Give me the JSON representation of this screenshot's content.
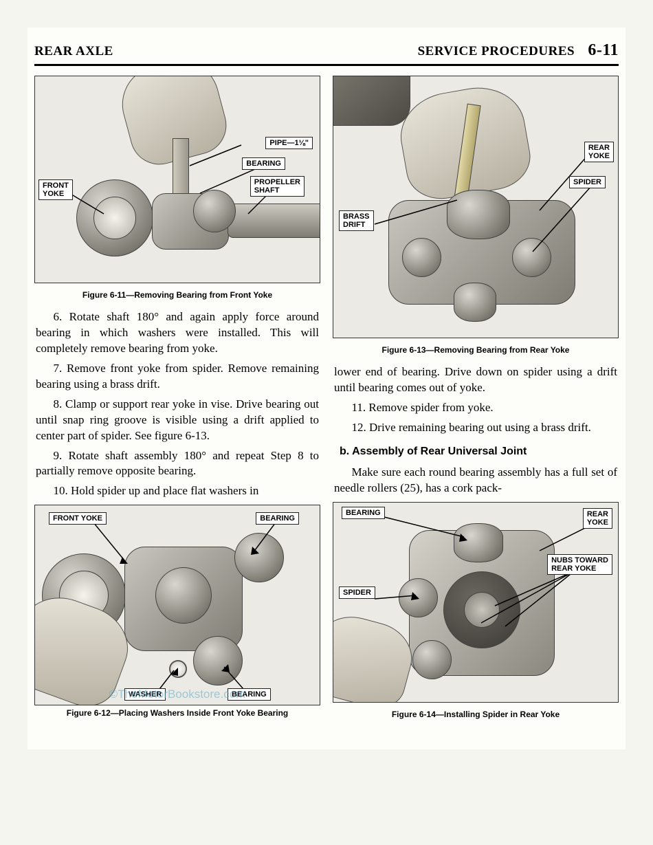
{
  "header": {
    "left": "REAR AXLE",
    "right": "SERVICE PROCEDURES",
    "pageNum": "6-11"
  },
  "figures": {
    "f611": {
      "caption": "Figure 6-11—Removing Bearing from Front Yoke",
      "labels": {
        "frontYoke": "FRONT\nYOKE",
        "pipe": "PIPE—1⅛\"",
        "bearing": "BEARING",
        "propShaft": "PROPELLER\nSHAFT"
      }
    },
    "f612": {
      "caption": "Figure 6-12—Placing Washers Inside Front Yoke Bearing",
      "labels": {
        "frontYoke": "FRONT YOKE",
        "bearing": "BEARING",
        "washer": "WASHER",
        "bearing2": "BEARING"
      }
    },
    "f613": {
      "caption": "Figure 6-13—Removing Bearing from Rear Yoke",
      "labels": {
        "brassDrift": "BRASS\nDRIFT",
        "rearYoke": "REAR\nYOKE",
        "spider": "SPIDER"
      }
    },
    "f614": {
      "caption": "Figure 6-14—Installing Spider in Rear Yoke",
      "labels": {
        "bearing": "BEARING",
        "rearYoke": "REAR\nYOKE",
        "spider": "SPIDER",
        "nubs": "NUBS TOWARD\nREAR YOKE"
      }
    }
  },
  "text": {
    "leftCol": [
      "6. Rotate shaft 180° and again apply force around bearing in which washers were installed. This will completely remove bearing from yoke.",
      "7. Remove front yoke from spider. Remove remaining bearing using a brass drift.",
      "8. Clamp or support rear yoke in vise. Drive bearing out until snap ring groove is visible using a drift applied to center part of spider. See figure 6-13.",
      "9. Rotate shaft assembly 180° and repeat Step 8 to partially remove opposite bearing.",
      "10. Hold spider up and place flat washers in"
    ],
    "rightColTop": [
      "lower end of bearing. Drive down on spider using a drift until bearing comes out of yoke.",
      "11. Remove spider from yoke.",
      "12. Drive remaining bearing out using a brass drift."
    ],
    "subhead": "b. Assembly of Rear Universal Joint",
    "rightColBottom": [
      "Make sure each round bearing assembly has a full set of needle rollers (25), has a cork pack-"
    ]
  },
  "watermark": "©TheMotorBookstore.com"
}
